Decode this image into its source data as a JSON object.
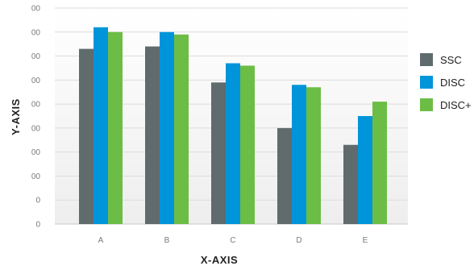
{
  "chart_data": {
    "type": "bar",
    "xlabel": "X-AXIS",
    "ylabel": "Y-AXIS",
    "categories": [
      "A",
      "B",
      "C",
      "D",
      "E"
    ],
    "y_tick_labels": [
      "0",
      "0",
      "00",
      "00",
      "00",
      "00",
      "00",
      "00",
      "00",
      "00"
    ],
    "ylim": [
      0,
      9
    ],
    "grid": true,
    "legend_position": "right",
    "series": [
      {
        "name": "SSC",
        "color": "#5f6b6d",
        "values": [
          7.3,
          7.4,
          5.9,
          4.0,
          3.3
        ]
      },
      {
        "name": "DISC",
        "color": "#0095da",
        "values": [
          8.2,
          8.0,
          6.7,
          5.8,
          4.5
        ]
      },
      {
        "name": "DISC+",
        "color": "#6cbd45",
        "values": [
          8.0,
          7.9,
          6.6,
          5.7,
          5.1
        ]
      }
    ]
  }
}
